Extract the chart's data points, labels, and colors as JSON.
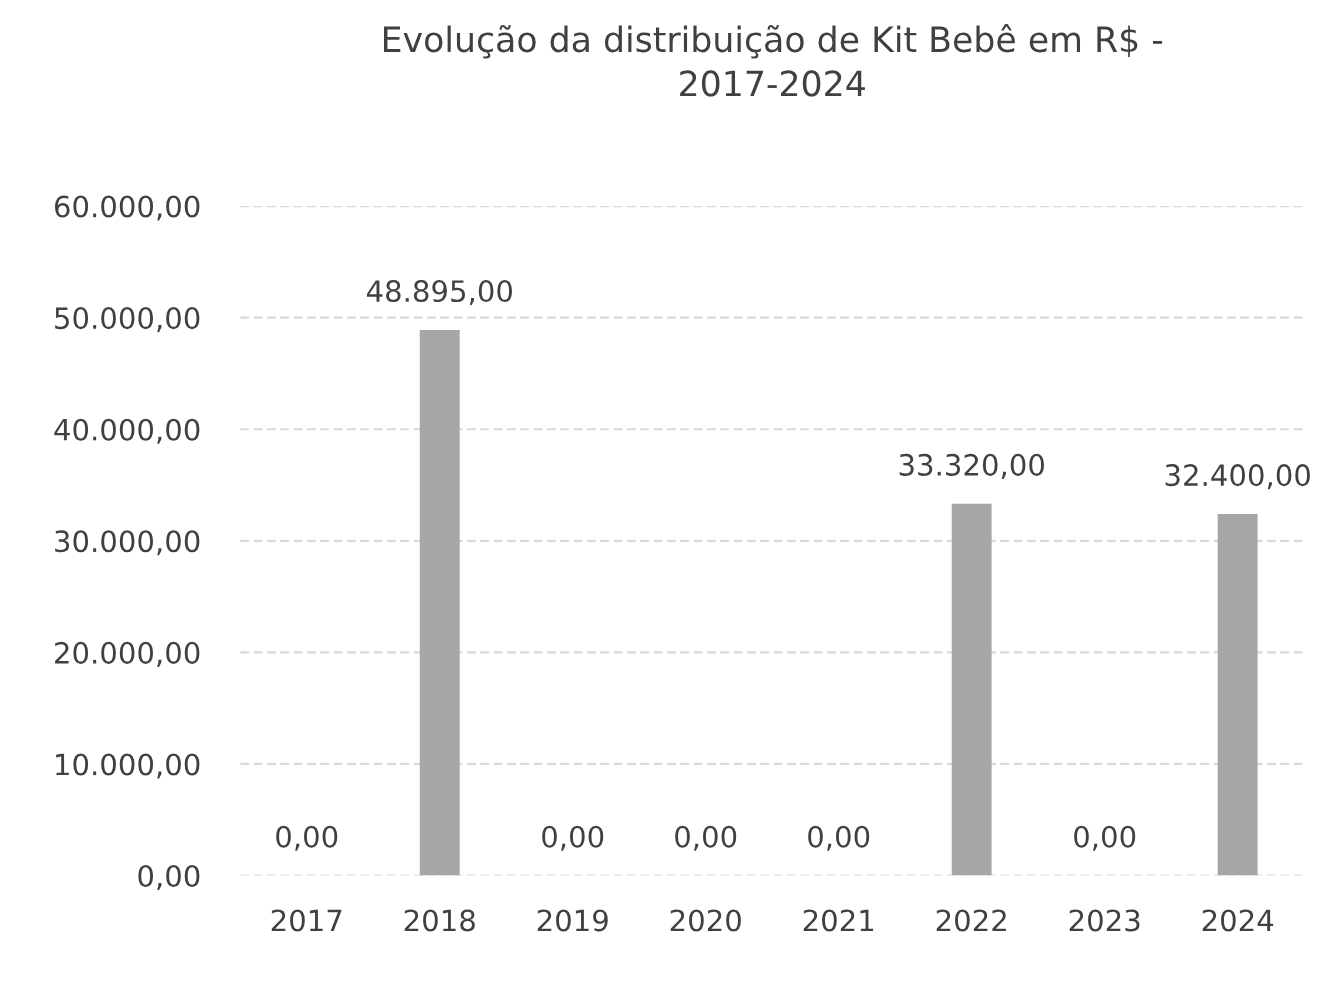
{
  "chart_data": {
    "type": "bar",
    "title": "Evolução da distribuição de Kit Bebê em R$ -\n2017-2024",
    "categories": [
      "2017",
      "2018",
      "2019",
      "2020",
      "2021",
      "2022",
      "2023",
      "2024"
    ],
    "values": [
      0,
      48895,
      0,
      0,
      0,
      33320,
      0,
      32400
    ],
    "color": "#a6a6a6",
    "value_labels": [
      "0,00",
      "48.895,00",
      "0,00",
      "0,00",
      "0,00",
      "33.320,00",
      "0,00",
      "32.400,00"
    ],
    "ylim": [
      0,
      60000
    ],
    "yticks": [
      {
        "value": 0,
        "label": "0,00"
      },
      {
        "value": 10000,
        "label": "10.000,00"
      },
      {
        "value": 20000,
        "label": "20.000,00"
      },
      {
        "value": 30000,
        "label": "30.000,00"
      },
      {
        "value": 40000,
        "label": "40.000,00"
      },
      {
        "value": 50000,
        "label": "50.000,00"
      },
      {
        "value": 60000,
        "label": "60.000,00"
      }
    ],
    "grid": "y",
    "legend": false
  }
}
